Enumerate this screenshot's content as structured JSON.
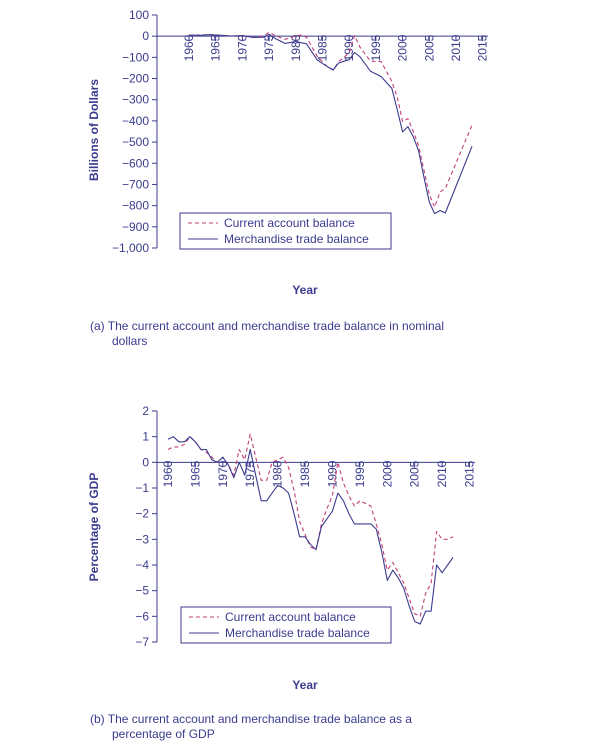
{
  "chart_data": [
    {
      "type": "line",
      "title": "",
      "caption_line1": "(a) The current account and merchandise trade balance in nominal",
      "caption_line2": "dollars",
      "xlabel": "Year",
      "ylabel": "Billions of Dollars",
      "ylim": [
        -1000,
        100
      ],
      "yticks": [
        100,
        0,
        -100,
        -200,
        -300,
        -400,
        -500,
        -600,
        -700,
        -800,
        -900,
        -1000
      ],
      "ytick_labels": [
        "100",
        "0",
        "−100",
        "−200",
        "−300",
        "−400",
        "−500",
        "−600",
        "−700",
        "−800",
        "−900",
        "−1,000"
      ],
      "xlim": [
        1954,
        2016
      ],
      "xticks": [
        1960,
        1965,
        1970,
        1975,
        1980,
        1985,
        1990,
        1995,
        2000,
        2005,
        2010,
        2015
      ],
      "grid": false,
      "legend": "bottom-left",
      "series": [
        {
          "name": "Current account balance",
          "style": "dashed",
          "color": "#c2407a",
          "x": [
            1960,
            1962,
            1964,
            1966,
            1968,
            1970,
            1972,
            1974,
            1975,
            1976,
            1978,
            1980,
            1981,
            1982,
            1984,
            1986,
            1987,
            1988,
            1989,
            1990,
            1991,
            1992,
            1994,
            1996,
            1998,
            1999,
            2000,
            2001,
            2002,
            2003,
            2004,
            2005,
            2006,
            2007,
            2008,
            2013
          ],
          "y": [
            3,
            5,
            7,
            3,
            1,
            2,
            -6,
            2,
            18,
            4,
            -15,
            2,
            5,
            -5,
            -95,
            -147,
            -160,
            -121,
            -99,
            -79,
            3,
            -51,
            -118,
            -120,
            -215,
            -287,
            -403,
            -389,
            -450,
            -518,
            -631,
            -748,
            -807,
            -736,
            -719,
            -420
          ]
        },
        {
          "name": "Merchandise trade balance",
          "style": "solid",
          "color": "#3b3b8f",
          "x": [
            1960,
            1962,
            1964,
            1966,
            1968,
            1970,
            1972,
            1974,
            1975,
            1976,
            1978,
            1980,
            1982,
            1984,
            1986,
            1987,
            1988,
            1989,
            1990,
            1991,
            1992,
            1994,
            1996,
            1998,
            1999,
            2000,
            2001,
            2002,
            2003,
            2004,
            2005,
            2006,
            2007,
            2008,
            2013
          ],
          "y": [
            5,
            4,
            7,
            4,
            1,
            3,
            -6,
            -5,
            9,
            -9,
            -34,
            -25,
            -36,
            -112,
            -145,
            -159,
            -127,
            -118,
            -111,
            -77,
            -97,
            -166,
            -191,
            -247,
            -346,
            -452,
            -427,
            -475,
            -541,
            -665,
            -783,
            -838,
            -823,
            -835,
            -520
          ]
        }
      ]
    },
    {
      "type": "line",
      "title": "",
      "caption_line1": "(b) The current account and merchandise trade balance as a",
      "caption_line2": "percentage of GDP",
      "xlabel": "Year",
      "ylabel": "Percentage of GDP",
      "ylim": [
        -7,
        2
      ],
      "yticks": [
        2,
        1,
        0,
        -1,
        -2,
        -3,
        -4,
        -5,
        -6,
        -7
      ],
      "ytick_labels": [
        "2",
        "1",
        "0",
        "−1",
        "−2",
        "−3",
        "−4",
        "−5",
        "−6",
        "−7"
      ],
      "xlim": [
        1958,
        2016
      ],
      "xticks": [
        1960,
        1965,
        1970,
        1975,
        1980,
        1985,
        1990,
        1995,
        2000,
        2005,
        2010,
        2015
      ],
      "grid": false,
      "legend": "bottom-left",
      "series": [
        {
          "name": "Current  account balance",
          "style": "dashed",
          "color": "#c2407a",
          "x": [
            1960,
            1961,
            1962,
            1963,
            1964,
            1965,
            1966,
            1967,
            1968,
            1969,
            1970,
            1971,
            1972,
            1973,
            1974,
            1975,
            1976,
            1977,
            1978,
            1979,
            1980,
            1981,
            1982,
            1983,
            1984,
            1985,
            1986,
            1987,
            1988,
            1989,
            1990,
            1991,
            1992,
            1993,
            1994,
            1995,
            1996,
            1997,
            1998,
            1999,
            2000,
            2001,
            2002,
            2003,
            2004,
            2005,
            2006,
            2007,
            2008,
            2009,
            2010,
            2011,
            2012
          ],
          "y": [
            0.5,
            0.6,
            0.6,
            0.7,
            1.0,
            0.8,
            0.5,
            0.4,
            0.2,
            0.0,
            0.2,
            -0.1,
            -0.5,
            0.5,
            0.1,
            1.1,
            0.2,
            -0.7,
            -0.7,
            0.0,
            0.1,
            0.2,
            -0.2,
            -1.1,
            -2.3,
            -2.8,
            -3.3,
            -3.4,
            -2.4,
            -1.8,
            -1.3,
            0.0,
            -0.8,
            -1.3,
            -1.7,
            -1.5,
            -1.6,
            -1.7,
            -2.4,
            -3.2,
            -4.2,
            -3.9,
            -4.3,
            -4.7,
            -5.3,
            -5.9,
            -6.0,
            -5.1,
            -4.7,
            -2.7,
            -3.0,
            -3.0,
            -2.9
          ]
        },
        {
          "name": "Merchandise trade balance",
          "style": "solid",
          "color": "#3b3b8f",
          "x": [
            1960,
            1961,
            1962,
            1963,
            1964,
            1965,
            1966,
            1967,
            1968,
            1969,
            1970,
            1971,
            1972,
            1973,
            1974,
            1975,
            1976,
            1977,
            1978,
            1979,
            1980,
            1981,
            1982,
            1983,
            1984,
            1985,
            1986,
            1987,
            1988,
            1989,
            1990,
            1991,
            1992,
            1993,
            1994,
            1995,
            1996,
            1997,
            1998,
            1999,
            2000,
            2001,
            2002,
            2003,
            2004,
            2005,
            2006,
            2007,
            2008,
            2009,
            2010,
            2011,
            2012
          ],
          "y": [
            0.9,
            1.0,
            0.8,
            0.8,
            1.0,
            0.8,
            0.5,
            0.5,
            0.1,
            0.0,
            0.2,
            -0.1,
            -0.6,
            0.0,
            -0.5,
            0.5,
            -0.5,
            -1.5,
            -1.5,
            -1.2,
            -0.9,
            -1.0,
            -1.2,
            -2.0,
            -2.9,
            -2.9,
            -3.2,
            -3.4,
            -2.5,
            -2.2,
            -1.9,
            -1.2,
            -1.5,
            -2.0,
            -2.4,
            -2.4,
            -2.4,
            -2.4,
            -2.6,
            -3.5,
            -4.6,
            -4.2,
            -4.5,
            -4.9,
            -5.6,
            -6.2,
            -6.3,
            -5.8,
            -5.8,
            -4.0,
            -4.3,
            -4.0,
            -3.7
          ]
        }
      ]
    }
  ]
}
